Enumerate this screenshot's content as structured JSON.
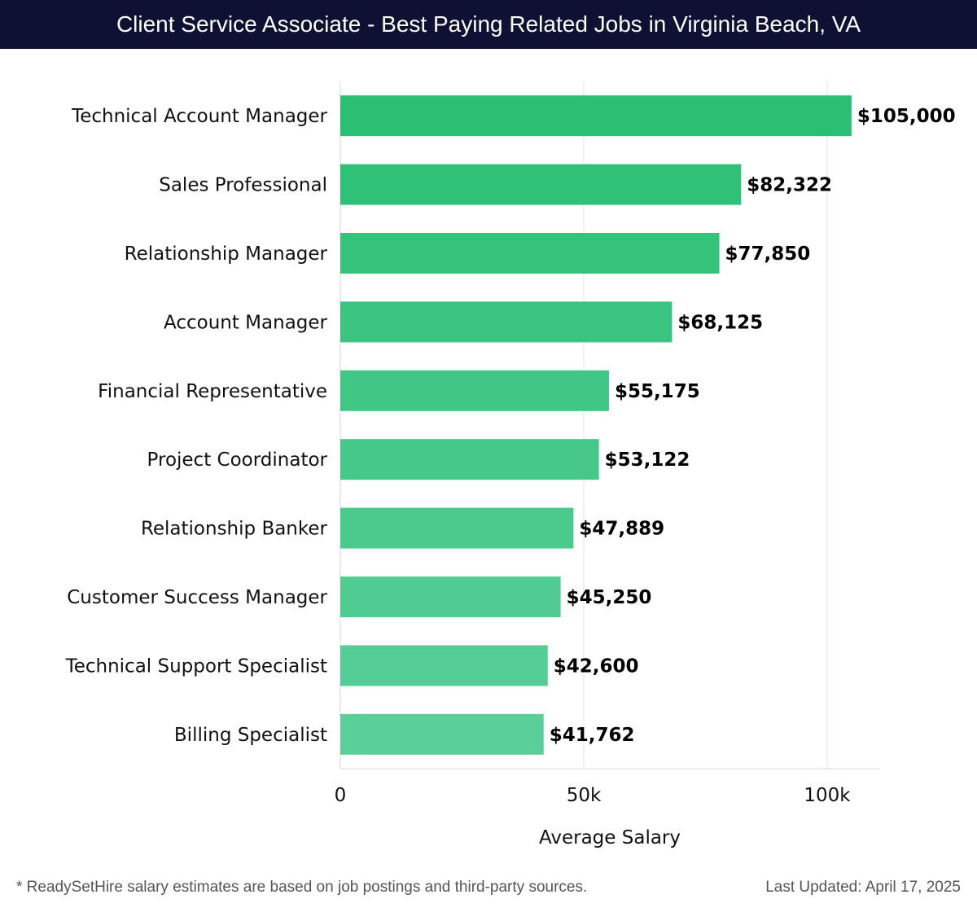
{
  "title": "Client Service Associate - Best Paying Related Jobs in Virginia Beach, VA",
  "footer": {
    "note": "* ReadySetHire salary estimates are based on job postings and third-party sources.",
    "updated": "Last Updated: April 17, 2025"
  },
  "chart_data": {
    "type": "bar",
    "orientation": "horizontal",
    "categories": [
      "Technical Account Manager",
      "Sales Professional",
      "Relationship Manager",
      "Account Manager",
      "Financial Representative",
      "Project Coordinator",
      "Relationship Banker",
      "Customer Success Manager",
      "Technical Support Specialist",
      "Billing Specialist"
    ],
    "values": [
      105000,
      82322,
      77850,
      68125,
      55175,
      53122,
      47889,
      45250,
      42600,
      41762
    ],
    "value_labels": [
      "$105,000",
      "$82,322",
      "$77,850",
      "$68,125",
      "$55,175",
      "$53,122",
      "$47,889",
      "$45,250",
      "$42,600",
      "$41,762"
    ],
    "xlabel": "Average Salary",
    "ylabel": "",
    "xlim": [
      0,
      110000
    ],
    "x_ticks": [
      0,
      50000,
      100000
    ],
    "x_tick_labels": [
      "0",
      "50k",
      "100k"
    ],
    "grid": true,
    "legend": "none",
    "colors": {
      "bar_top": "#2bbf74",
      "bar_bottom": "#5acf9a",
      "title_bg": "#0e1133"
    }
  }
}
